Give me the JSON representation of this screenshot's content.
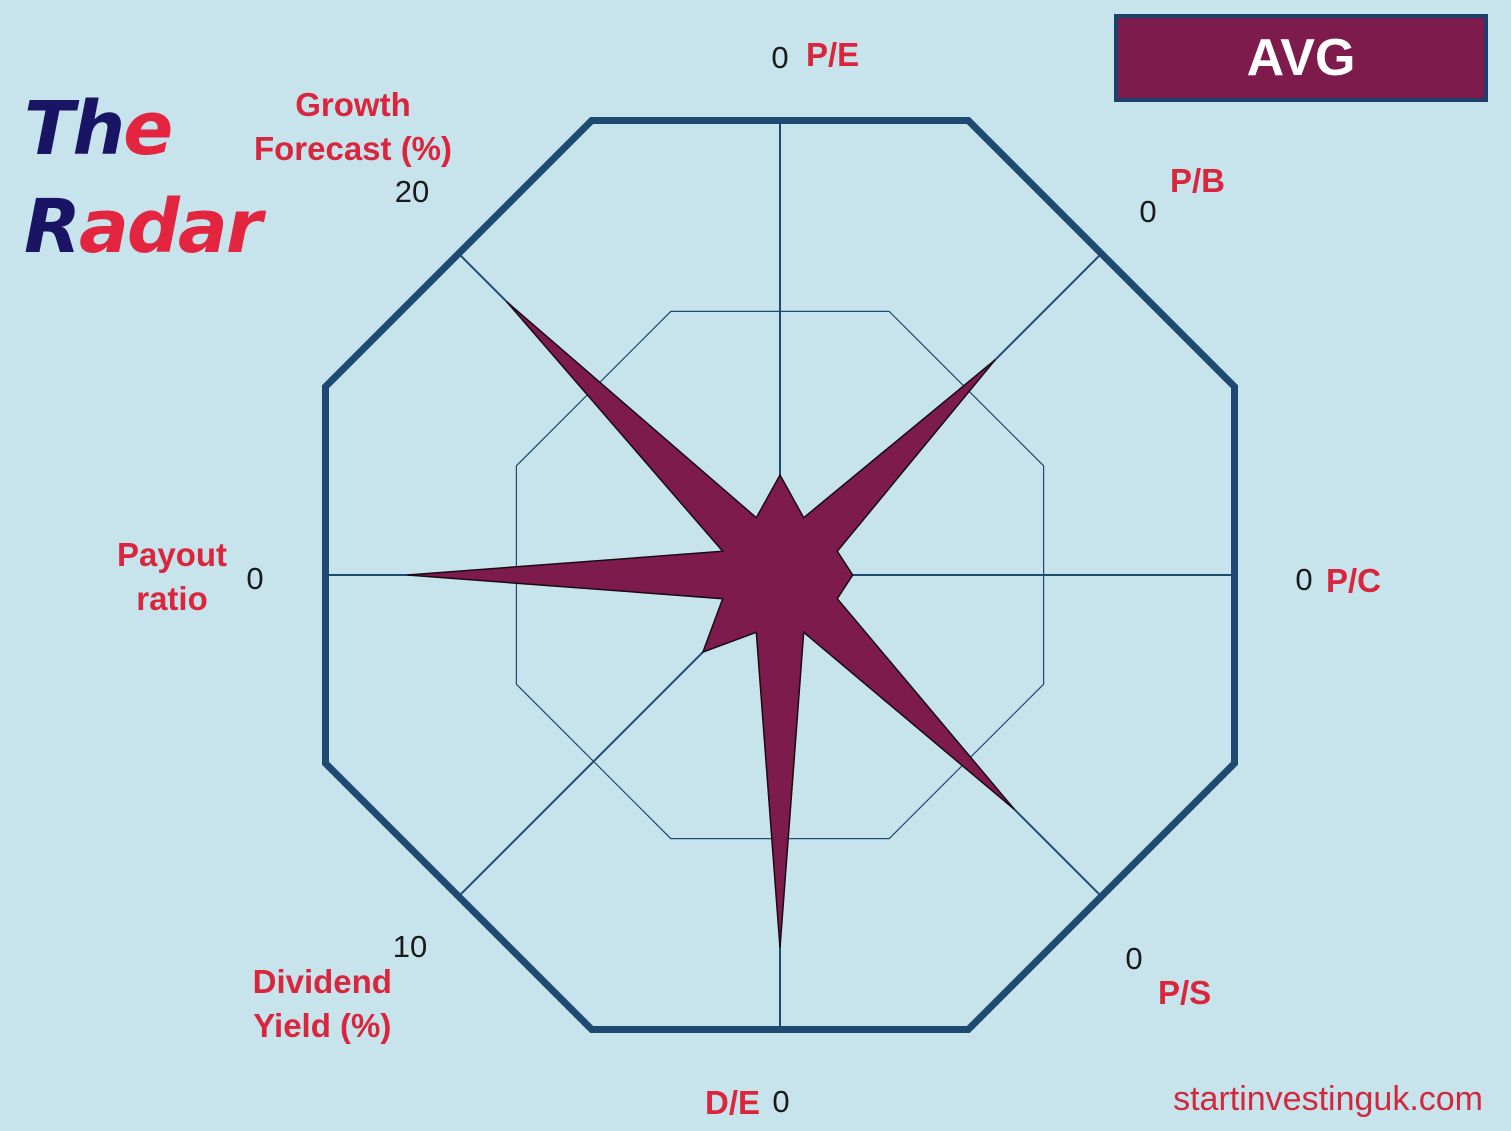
{
  "brand": {
    "line1_a": "Th",
    "line1_b": "e",
    "line2_a": "R",
    "line2_b": "adar"
  },
  "badge": {
    "label": "AVG"
  },
  "source": {
    "text": "startinvestinguk.com"
  },
  "colors": {
    "background": "#c7e4ed",
    "grid": "#1e4a72",
    "fill": "#7d1b4c",
    "label": "#d9263d",
    "brand_navy": "#1a1464",
    "brand_red": "#e3253f"
  },
  "chart_data": {
    "type": "radar",
    "axes": [
      {
        "label": [
          "P/E"
        ],
        "max_label": "0",
        "value": 0.22
      },
      {
        "label": [
          "P/B"
        ],
        "max_label": "0",
        "value": 0.67
      },
      {
        "label": [
          "P/C"
        ],
        "max_label": "0",
        "value": 0.16
      },
      {
        "label": [
          "P/S"
        ],
        "max_label": "0",
        "value": 0.73
      },
      {
        "label": [
          "D/E"
        ],
        "max_label": "0",
        "value": 0.82
      },
      {
        "label": [
          "Dividend",
          "Yield (%)"
        ],
        "max_label": "10",
        "value": 0.24
      },
      {
        "label": [
          "Payout",
          "ratio"
        ],
        "max_label": "0",
        "value": 0.82
      },
      {
        "label": [
          "Growth",
          "Forecast (%)"
        ],
        "max_label": "20",
        "value": 0.85
      }
    ],
    "inner_ring": 0.58,
    "series": [
      {
        "name": "AVG",
        "color": "#7d1b4c"
      }
    ]
  }
}
